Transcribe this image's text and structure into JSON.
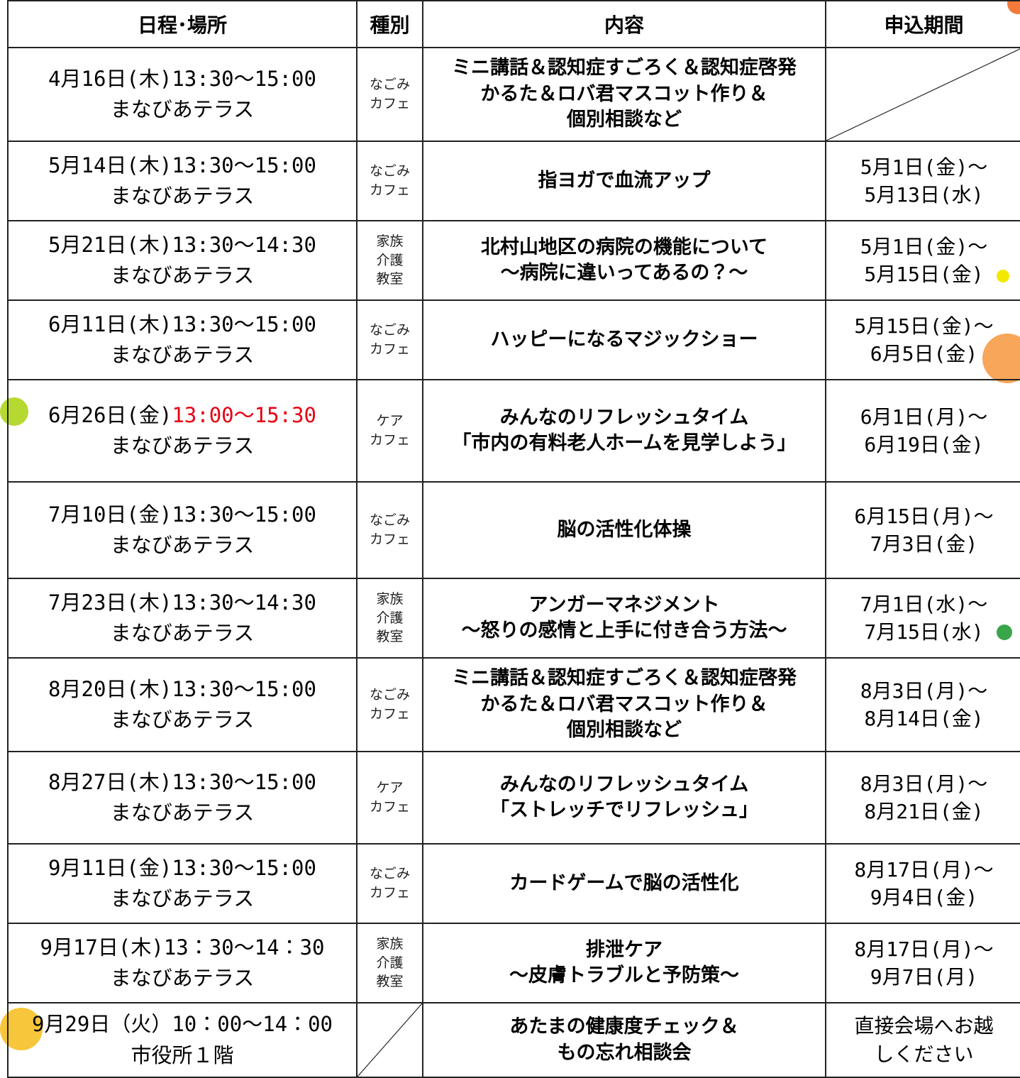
{
  "header": {
    "columns": [
      "日程･場所",
      "種別",
      "内容",
      "申込期間"
    ]
  },
  "table": {
    "rows": [
      {
        "date": "4月16日(木)",
        "time": "13:30～15:00",
        "place": "まなびあテラス",
        "type": [
          "なごみ",
          "カフェ"
        ],
        "content": [
          "ミニ講話＆認知症すごろく＆認知症啓発",
          "かるた＆ロバ君マスコット作り＆",
          "個別相談など"
        ],
        "period": []
      },
      {
        "date": "5月14日(木)",
        "time": "13:30～15:00",
        "place": "まなびあテラス",
        "type": [
          "なごみ",
          "カフェ"
        ],
        "content": [
          "指ヨガで血流アップ"
        ],
        "period": [
          "5月1日(金)～",
          "5月13日(水)"
        ]
      },
      {
        "date": "5月21日(木)",
        "time": "13:30～14:30",
        "place": "まなびあテラス",
        "type": [
          "家族",
          "介護",
          "教室"
        ],
        "content": [
          "北村山地区の病院の機能について",
          "～病院に違いってあるの？～"
        ],
        "period": [
          "5月1日(金)～",
          "5月15日(金)"
        ]
      },
      {
        "date": "6月11日(木)",
        "time": "13:30～15:00",
        "place": "まなびあテラス",
        "type": [
          "なごみ",
          "カフェ"
        ],
        "content": [
          "ハッピーになるマジックショー"
        ],
        "period": [
          "5月15日(金)～",
          "6月5日(金)"
        ]
      },
      {
        "date": "6月26日(金)",
        "time": "13:00～15:30",
        "time_color": "#e60012",
        "place": "まなびあテラス",
        "type": [
          "ケア",
          "カフェ"
        ],
        "content": [
          "みんなのリフレッシュタイム",
          "「市内の有料老人ホームを見学しよう」"
        ],
        "period": [
          "6月1日(月)～",
          "6月19日(金)"
        ]
      },
      {
        "date": "7月10日(金)",
        "time": "13:30～15:00",
        "place": "まなびあテラス",
        "type": [
          "なごみ",
          "カフェ"
        ],
        "content": [
          "脳の活性化体操"
        ],
        "period": [
          "6月15日(月)～",
          "7月3日(金)"
        ]
      },
      {
        "date": "7月23日(木)",
        "time": "13:30～14:30",
        "place": "まなびあテラス",
        "type": [
          "家族",
          "介護",
          "教室"
        ],
        "content": [
          "アンガーマネジメント",
          "～怒りの感情と上手に付き合う方法～"
        ],
        "period": [
          "7月1日(水)～",
          "7月15日(水)"
        ]
      },
      {
        "date": "8月20日(木)",
        "time": "13:30～15:00",
        "place": "まなびあテラス",
        "type": [
          "なごみ",
          "カフェ"
        ],
        "content": [
          "ミニ講話＆認知症すごろく＆認知症啓発",
          "かるた＆ロバ君マスコット作り＆",
          "個別相談など"
        ],
        "period": [
          "8月3日(月)～",
          "8月14日(金)"
        ]
      },
      {
        "date": "8月27日(木)",
        "time": "13:30～15:00",
        "place": "まなびあテラス",
        "type": [
          "ケア",
          "カフェ"
        ],
        "content": [
          "みんなのリフレッシュタイム",
          "「ストレッチでリフレッシュ」"
        ],
        "period": [
          "8月3日(月)～",
          "8月21日(金)"
        ]
      },
      {
        "date": "9月11日(金)",
        "time": "13:30～15:00",
        "place": "まなびあテラス",
        "type": [
          "なごみ",
          "カフェ"
        ],
        "content": [
          "カードゲームで脳の活性化"
        ],
        "period": [
          "8月17日(月)～",
          "9月4日(金)"
        ]
      },
      {
        "date": "9月17日(木)",
        "time": "13：30～14：30",
        "place": "まなびあテラス",
        "type": [
          "家族",
          "介護",
          "教室"
        ],
        "content": [
          "排泄ケア",
          "～皮膚トラブルと予防策～"
        ],
        "period": [
          "8月17日(月)～",
          "9月7日(月)"
        ]
      },
      {
        "date": "9月29日（火）",
        "time": "10：00～14：00",
        "place": "市役所１階",
        "type": [],
        "content": [
          "あたまの健康度チェック＆",
          "もの忘れ相談会"
        ],
        "period": [
          "直接会場へお越",
          "しください"
        ]
      }
    ]
  }
}
